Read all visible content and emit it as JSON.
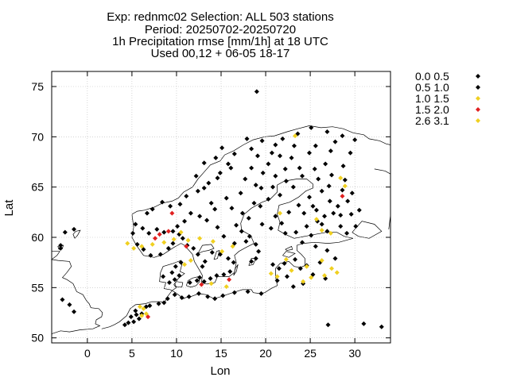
{
  "chart_data": {
    "type": "scatter",
    "title_lines": [
      "Exp: rednmc02   Selection: ALL    503 stations",
      "Period: 20250702-20250720",
      "1h Precipitation rmse [mm/1h] at  18 UTC",
      "Used 00,12 + 06-05 18-17"
    ],
    "xlabel": "Lon",
    "ylabel": "Lat",
    "xlim": [
      -4,
      34
    ],
    "ylim": [
      49.5,
      76.5
    ],
    "xticks": [
      0,
      5,
      10,
      15,
      20,
      25,
      30
    ],
    "yticks": [
      50,
      55,
      60,
      65,
      70,
      75
    ],
    "grid": true,
    "legend_position": "outside-right",
    "map_background": "coastlines (Scandinavia, Baltic, Denmark, N. Germany, Poland)",
    "series": [
      {
        "name": "0.0 0.5",
        "color": "#000000",
        "points": [
          [
            19,
            74.5
          ],
          [
            27,
            51.3
          ],
          [
            31,
            51.4
          ],
          [
            33,
            51.1
          ],
          [
            -2.5,
            60.5
          ],
          [
            -1.5,
            60.8
          ],
          [
            -3,
            59.2
          ],
          [
            -3,
            58.9
          ],
          [
            -2.8,
            53.8
          ],
          [
            -2,
            53.3
          ],
          [
            -1.5,
            52.6
          ],
          [
            4.2,
            51.3
          ],
          [
            4.6,
            51.5
          ],
          [
            5.2,
            51.6
          ],
          [
            5.8,
            51.9
          ],
          [
            6.1,
            52.4
          ],
          [
            5.4,
            52.7
          ],
          [
            6.6,
            53.1
          ],
          [
            7,
            53.2
          ],
          [
            4.9,
            52.1
          ],
          [
            5.5,
            52.3
          ],
          [
            8,
            53.4
          ],
          [
            8.6,
            53.5
          ],
          [
            9,
            53.9
          ],
          [
            9.8,
            54.3
          ],
          [
            10.6,
            54
          ],
          [
            11.4,
            54.1
          ],
          [
            12.5,
            54.4
          ],
          [
            13.5,
            54.1
          ],
          [
            14.3,
            53.9
          ],
          [
            15.2,
            54.2
          ],
          [
            16.5,
            54.5
          ],
          [
            18,
            54.6
          ],
          [
            19.5,
            54.4
          ],
          [
            9.2,
            55.5
          ],
          [
            9.8,
            55.8
          ],
          [
            10.3,
            56.2
          ],
          [
            9.5,
            56.5
          ],
          [
            8.5,
            56.1
          ],
          [
            9.9,
            57.1
          ],
          [
            10.5,
            57.5
          ],
          [
            11.5,
            55.5
          ],
          [
            12.3,
            55.7
          ],
          [
            12.6,
            56
          ],
          [
            13.1,
            55.6
          ],
          [
            13.8,
            55.9
          ],
          [
            14.5,
            56.2
          ],
          [
            15.3,
            56.3
          ],
          [
            16,
            56.6
          ],
          [
            16.4,
            57.5
          ],
          [
            15.8,
            57.9
          ],
          [
            14.9,
            58.3
          ],
          [
            14,
            58.5
          ],
          [
            13.2,
            57.6
          ],
          [
            12.9,
            57.1
          ],
          [
            12.4,
            58.3
          ],
          [
            11.9,
            58.9
          ],
          [
            11.2,
            59.2
          ],
          [
            10.7,
            59.9
          ],
          [
            10.3,
            60.3
          ],
          [
            9.6,
            60.6
          ],
          [
            8.6,
            60.5
          ],
          [
            7.8,
            60.8
          ],
          [
            6.9,
            60.4
          ],
          [
            6.2,
            60.9
          ],
          [
            5.4,
            61.3
          ],
          [
            5.1,
            60.4
          ],
          [
            5.6,
            59.3
          ],
          [
            6.3,
            58.8
          ],
          [
            7.1,
            58.2
          ],
          [
            8.2,
            58.3
          ],
          [
            9.1,
            58.9
          ],
          [
            9.6,
            59.4
          ],
          [
            10.1,
            61.1
          ],
          [
            10.9,
            61.6
          ],
          [
            11.6,
            62.4
          ],
          [
            10.4,
            63.3
          ],
          [
            9.3,
            63.1
          ],
          [
            8.4,
            63.5
          ],
          [
            7.3,
            62.8
          ],
          [
            6.7,
            62.4
          ],
          [
            12.4,
            64.6
          ],
          [
            13.6,
            65.4
          ],
          [
            14.9,
            66.4
          ],
          [
            15.8,
            67.3
          ],
          [
            14.4,
            67.9
          ],
          [
            16.5,
            68.3
          ],
          [
            18.4,
            68.8
          ],
          [
            19.6,
            69.6
          ],
          [
            21.9,
            69.8
          ],
          [
            23.6,
            70.3
          ],
          [
            25.1,
            70.9
          ],
          [
            26.9,
            70.5
          ],
          [
            28.6,
            70.1
          ],
          [
            30,
            69.7
          ],
          [
            24.9,
            68.4
          ],
          [
            27.3,
            68.6
          ],
          [
            26.7,
            67.3
          ],
          [
            25.5,
            66.8
          ],
          [
            24.1,
            66.1
          ],
          [
            22.3,
            65.6
          ],
          [
            20.8,
            65
          ],
          [
            21.6,
            64.2
          ],
          [
            20.3,
            63.8
          ],
          [
            18.7,
            63.4
          ],
          [
            17.4,
            62.4
          ],
          [
            16.7,
            61.2
          ],
          [
            17.3,
            60.6
          ],
          [
            18.2,
            60.1
          ],
          [
            18.9,
            59.3
          ],
          [
            17.8,
            59.6
          ],
          [
            16.5,
            59.4
          ],
          [
            15.3,
            60.1
          ],
          [
            14.6,
            61
          ],
          [
            13.4,
            61.7
          ],
          [
            14.3,
            62.8
          ],
          [
            15.6,
            63.9
          ],
          [
            17.2,
            64.4
          ],
          [
            18.9,
            65.2
          ],
          [
            19.7,
            66.4
          ],
          [
            20.3,
            67.3
          ],
          [
            21.6,
            68.1
          ],
          [
            22.9,
            67.9
          ],
          [
            23.8,
            66.9
          ],
          [
            25.9,
            65.8
          ],
          [
            27.1,
            65.1
          ],
          [
            28.6,
            64.7
          ],
          [
            29.2,
            63.6
          ],
          [
            28.1,
            63.1
          ],
          [
            27.6,
            62.4
          ],
          [
            26.6,
            62.1
          ],
          [
            25.8,
            61.6
          ],
          [
            24.6,
            61.1
          ],
          [
            23.4,
            60.5
          ],
          [
            22.2,
            60.4
          ],
          [
            21.8,
            61.4
          ],
          [
            22.6,
            62.5
          ],
          [
            23.7,
            63.2
          ],
          [
            24.9,
            64
          ],
          [
            26.3,
            64.6
          ],
          [
            25.3,
            63.1
          ],
          [
            26.9,
            60.6
          ],
          [
            28.4,
            61.1
          ],
          [
            29.6,
            62.3
          ],
          [
            30.1,
            61.1
          ],
          [
            29.1,
            60.4
          ],
          [
            25.1,
            60.2
          ],
          [
            24.1,
            59.5
          ],
          [
            25.6,
            59.1
          ],
          [
            26.9,
            58.7
          ],
          [
            27.8,
            57.9
          ],
          [
            26.1,
            57.5
          ],
          [
            24.6,
            57.2
          ],
          [
            23.3,
            57.8
          ],
          [
            22.1,
            57.4
          ],
          [
            21.5,
            56.9
          ],
          [
            22.4,
            56.1
          ],
          [
            23.9,
            56.9
          ],
          [
            25.3,
            56.3
          ],
          [
            26.7,
            55.9
          ],
          [
            24.2,
            55.4
          ],
          [
            23.1,
            55.1
          ],
          [
            21.3,
            55.7
          ],
          [
            20.8,
            57.3
          ],
          [
            18.4,
            57.6
          ],
          [
            18.9,
            57.9
          ],
          [
            19.2,
            58.6
          ],
          [
            12.6,
            62.1
          ],
          [
            13.9,
            63.4
          ],
          [
            11.1,
            64.1
          ],
          [
            12.2,
            66.1
          ],
          [
            13.1,
            67.4
          ],
          [
            15.1,
            68.9
          ],
          [
            17.9,
            69.8
          ],
          [
            20.7,
            68.4
          ],
          [
            22.2,
            66.8
          ],
          [
            21.1,
            66.1
          ],
          [
            23.1,
            65
          ],
          [
            19.5,
            64.9
          ],
          [
            17.7,
            65.8
          ],
          [
            18.4,
            66.9
          ],
          [
            19.1,
            68.1
          ],
          [
            16.1,
            66.9
          ],
          [
            14.6,
            65.9
          ],
          [
            13.1,
            64.9
          ],
          [
            16.2,
            62.9
          ],
          [
            18.1,
            61.9
          ],
          [
            19.6,
            61.3
          ],
          [
            20.6,
            60.9
          ],
          [
            21.1,
            62.1
          ],
          [
            19.4,
            63.1
          ],
          [
            24.3,
            62.4
          ],
          [
            25.7,
            62.7
          ],
          [
            27.2,
            63.6
          ],
          [
            28.4,
            62.2
          ],
          [
            26.3,
            61.3
          ],
          [
            30.5,
            62.7
          ],
          [
            29.7,
            64.4
          ],
          [
            28.9,
            65.7
          ],
          [
            27.4,
            66.2
          ],
          [
            28.7,
            67.1
          ],
          [
            29.5,
            68.4
          ],
          [
            25.6,
            69.1
          ],
          [
            27.8,
            69.5
          ],
          [
            23.2,
            69.1
          ],
          [
            21.1,
            69.2
          ]
        ]
      },
      {
        "name": "0.5 1.0",
        "color": "#000000",
        "points": []
      },
      {
        "name": "1.0 1.5",
        "color": "#f0d020",
        "points": [
          [
            4.5,
            59.4
          ],
          [
            5.2,
            58.9
          ],
          [
            6.1,
            59.1
          ],
          [
            7.3,
            59.3
          ],
          [
            8.6,
            59.5
          ],
          [
            9.7,
            59.8
          ],
          [
            10.5,
            60.5
          ],
          [
            11.3,
            59.7
          ],
          [
            12.6,
            59.9
          ],
          [
            14.1,
            59.6
          ],
          [
            15.1,
            58.6
          ],
          [
            16.3,
            59.1
          ],
          [
            22.3,
            57.8
          ],
          [
            22.9,
            56.7
          ],
          [
            24.6,
            57.1
          ],
          [
            26.3,
            57.7
          ],
          [
            27.4,
            56.9
          ],
          [
            28,
            56.5
          ],
          [
            26.6,
            56.2
          ],
          [
            25.1,
            56
          ],
          [
            24.2,
            55.6
          ],
          [
            20.6,
            56.4
          ],
          [
            21.3,
            56.1
          ],
          [
            21.6,
            62.4
          ],
          [
            23.3,
            70.1
          ],
          [
            25.7,
            61.8
          ],
          [
            26.3,
            60.7
          ],
          [
            27.3,
            60.4
          ],
          [
            28.4,
            65.9
          ],
          [
            28.9,
            65.1
          ],
          [
            6.6,
            52.4
          ],
          [
            5.9,
            53.1
          ],
          [
            13.9,
            55.4
          ],
          [
            15.6,
            55.1
          ],
          [
            11.6,
            57.7
          ],
          [
            10.9,
            57.3
          ]
        ]
      },
      {
        "name": "1.5 2.0",
        "color": "#e02020",
        "points": [
          [
            7.6,
            59.9
          ],
          [
            8.1,
            60.3
          ],
          [
            9.1,
            60.6
          ],
          [
            9.5,
            62.4
          ],
          [
            11.1,
            59.1
          ],
          [
            12.8,
            55.3
          ],
          [
            15.9,
            55.8
          ],
          [
            6.8,
            52.1
          ],
          [
            28.6,
            64.1
          ]
        ]
      },
      {
        "name": "2.6 3.1",
        "color": "#f0d020",
        "points": [
          [
            6.3,
            52.9
          ],
          [
            6.1,
            52.2
          ]
        ]
      }
    ]
  }
}
